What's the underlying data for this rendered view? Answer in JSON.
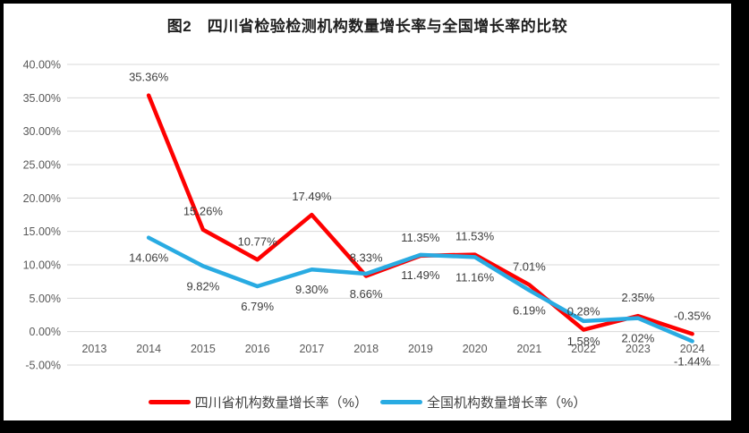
{
  "title": "图2　四川省检验检测机构数量增长率与全国增长率的比较",
  "colors": {
    "frame_background": "#000000",
    "chart_background": "#ffffff",
    "gridline": "#d9d9d9",
    "axis_text": "#595959",
    "data_label_text": "#3d3d3d",
    "sichuan_red": "#fe0000",
    "national_blue": "#29abe2"
  },
  "chart_data": {
    "type": "line",
    "title": "图2　四川省检验检测机构数量增长率与全国增长率的比较",
    "categories": [
      "2013",
      "2014",
      "2015",
      "2016",
      "2017",
      "2018",
      "2019",
      "2020",
      "2021",
      "2022",
      "2023",
      "2024"
    ],
    "series": [
      {
        "name": "四川省机构数量增长率（%）",
        "color": "#fe0000",
        "start_index": 1,
        "x": [
          "2014",
          "2015",
          "2016",
          "2017",
          "2018",
          "2019",
          "2020",
          "2021",
          "2022",
          "2023",
          "2024"
        ],
        "values": [
          35.36,
          15.26,
          10.77,
          17.49,
          8.33,
          11.35,
          11.53,
          7.01,
          0.28,
          2.35,
          -0.35
        ],
        "labels": [
          "35.36%",
          "15.26%",
          "10.77%",
          "17.49%",
          "8.33%",
          "11.35%",
          "11.53%",
          "7.01%",
          "0.28%",
          "2.35%",
          "-0.35%"
        ],
        "label_position": "above"
      },
      {
        "name": "全国机构数量增长率（%）",
        "color": "#29abe2",
        "start_index": 1,
        "x": [
          "2014",
          "2015",
          "2016",
          "2017",
          "2018",
          "2019",
          "2020",
          "2021",
          "2022",
          "2023",
          "2024"
        ],
        "values": [
          14.06,
          9.82,
          6.79,
          9.3,
          8.66,
          11.49,
          11.16,
          6.19,
          1.58,
          2.02,
          -1.44
        ],
        "labels": [
          "14.06%",
          "9.82%",
          "6.79%",
          "9.30%",
          "8.66%",
          "11.49%",
          "11.16%",
          "6.19%",
          "1.58%",
          "2.02%",
          "-1.44%"
        ],
        "label_position": "below"
      }
    ],
    "y_axis": {
      "min": -5,
      "max": 40,
      "step": 5,
      "tick_labels": [
        "40.00%",
        "35.00%",
        "30.00%",
        "25.00%",
        "20.00%",
        "15.00%",
        "10.00%",
        "5.00%",
        "0.00%",
        "-5.00%"
      ]
    },
    "xlabel": "",
    "ylabel": "",
    "grid": true,
    "legend_position": "bottom",
    "markers": false
  }
}
